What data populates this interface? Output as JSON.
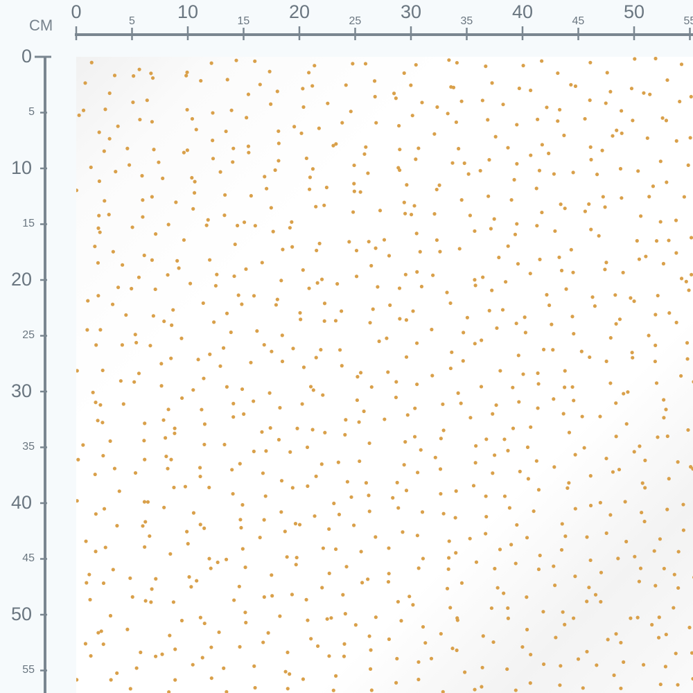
{
  "ruler": {
    "unit": "CM",
    "color": "#7a8690",
    "top_labels": [
      "0",
      "5",
      "10",
      "15",
      "20",
      "25",
      "30",
      "35",
      "40",
      "45",
      "50",
      "55"
    ],
    "left_labels": [
      "0",
      "5",
      "10",
      "15",
      "20",
      "25",
      "30",
      "35",
      "40",
      "45",
      "50",
      "55"
    ]
  },
  "fabric": {
    "pattern": "scattered dots",
    "background_color": "#ffffff",
    "dot_color": "#d9a04a"
  }
}
